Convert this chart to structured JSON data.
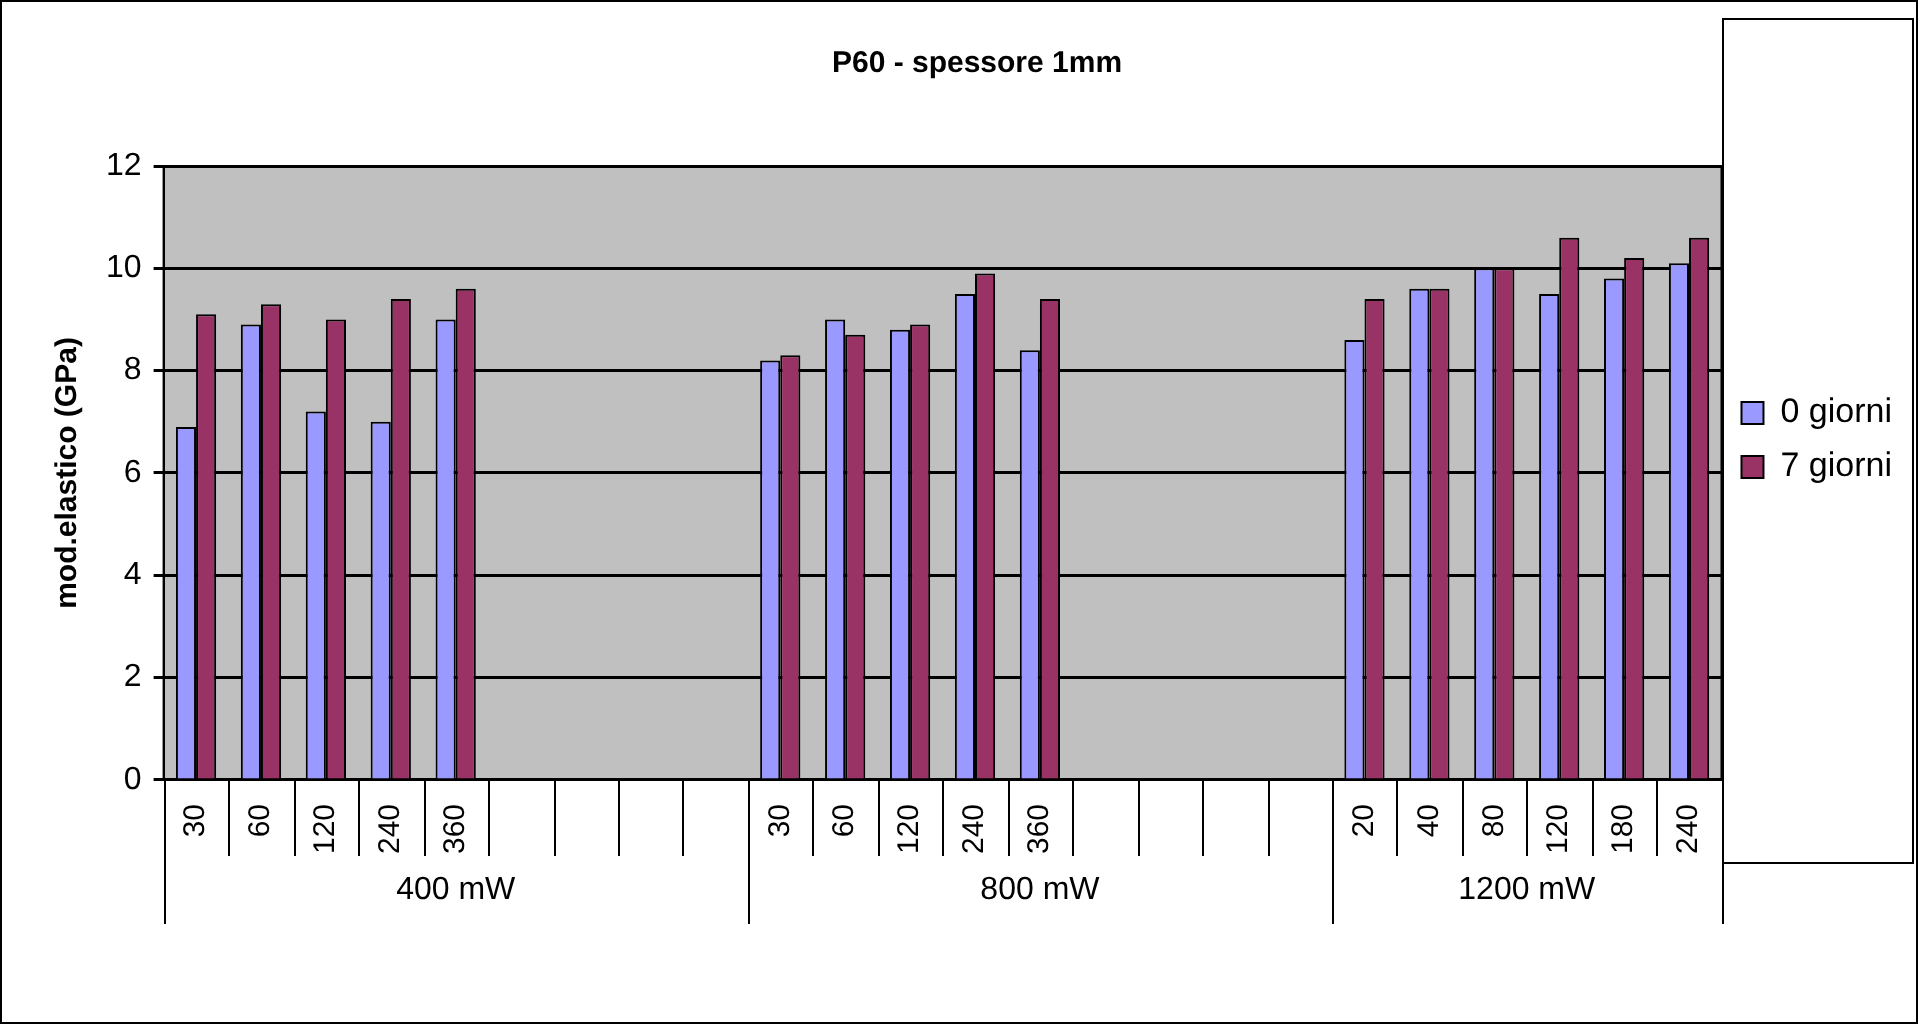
{
  "chart_data": {
    "type": "bar",
    "title": "P60 - spessore 1mm",
    "ylabel": "mod.elastico (GPa)",
    "categories": [
      "30",
      "60",
      "120",
      "240",
      "360",
      null,
      null,
      null,
      null,
      "30",
      "60",
      "120",
      "240",
      "360",
      null,
      null,
      null,
      null,
      "20",
      "40",
      "80",
      "120",
      "180",
      "240"
    ],
    "annotations": [
      "400 mW",
      "800 mW",
      "1200 mW"
    ],
    "series": [
      {
        "name": "0 giorni",
        "color": "#9999ff",
        "values": [
          6.9,
          8.9,
          7.2,
          7.0,
          9.0,
          null,
          null,
          null,
          null,
          8.2,
          9.0,
          8.8,
          9.5,
          8.4,
          null,
          null,
          null,
          null,
          8.6,
          9.6,
          10.0,
          9.5,
          9.8,
          10.1
        ]
      },
      {
        "name": "7 giorni",
        "color": "#993366",
        "values": [
          9.1,
          9.3,
          9.0,
          9.4,
          9.6,
          null,
          null,
          null,
          null,
          8.3,
          8.7,
          8.9,
          9.9,
          9.4,
          null,
          null,
          null,
          null,
          9.4,
          9.6,
          10.0,
          10.6,
          10.2,
          10.6
        ]
      }
    ],
    "ylim": [
      0,
      12
    ],
    "yticks": [
      0,
      2,
      4,
      6,
      8,
      10,
      12
    ],
    "grid": "y",
    "legend": "right"
  }
}
